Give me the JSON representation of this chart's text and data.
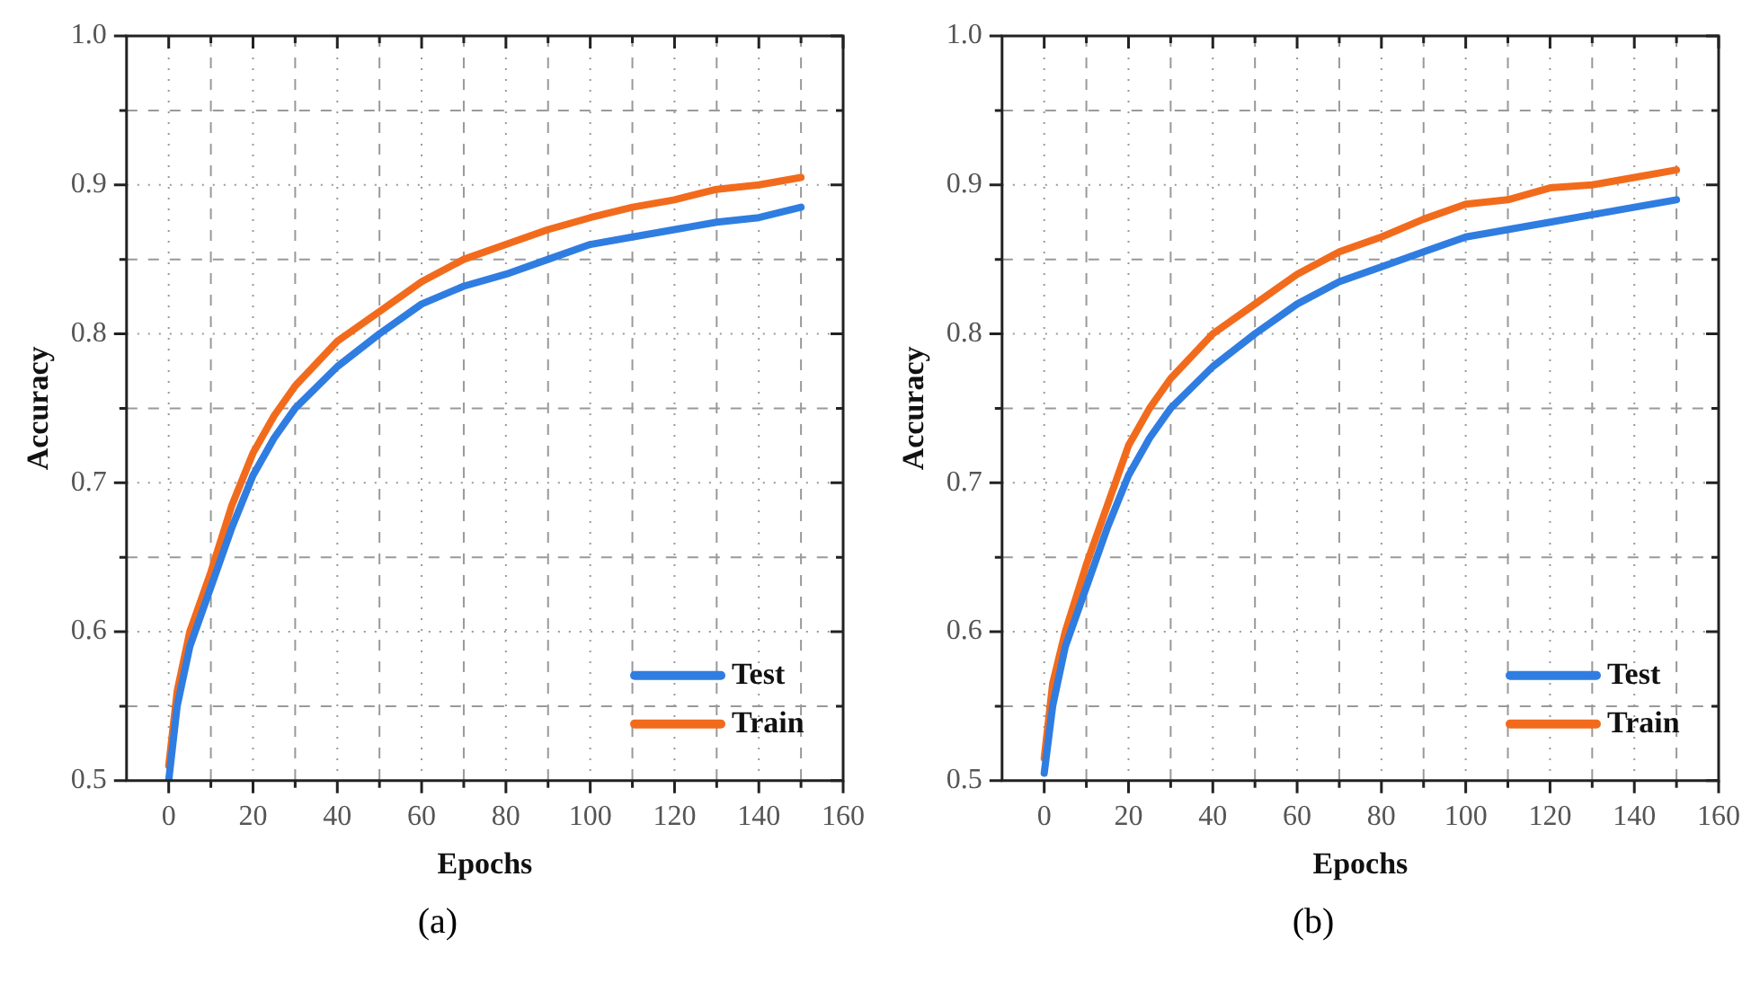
{
  "chart_data": [
    {
      "type": "line",
      "xlabel": "Epochs",
      "ylabel": "Accuracy",
      "annotations": [
        "(a)"
      ],
      "xlim": [
        -10,
        160
      ],
      "ylim": [
        0.5,
        1.0
      ],
      "xticks": [
        0,
        {
          "value": 10,
          "label": null
        },
        20,
        {
          "value": 30,
          "label": null
        },
        40,
        {
          "value": 50,
          "label": null
        },
        60,
        {
          "value": 70,
          "label": null
        },
        80,
        {
          "value": 90,
          "label": null
        },
        100,
        {
          "value": 110,
          "label": null
        },
        120,
        {
          "value": 130,
          "label": null
        },
        140,
        {
          "value": 150,
          "label": null
        },
        160
      ],
      "yticks": [
        0.5,
        {
          "value": 0.55,
          "label": null
        },
        0.6,
        {
          "value": 0.65,
          "label": null
        },
        0.7,
        {
          "value": 0.75,
          "label": null
        },
        0.8,
        {
          "value": 0.85,
          "label": null
        },
        0.9,
        {
          "value": 0.95,
          "label": null
        },
        {
          "value": 1.0,
          "label": "1.0"
        }
      ],
      "grid": true,
      "legend": "bottom right",
      "marker": "none",
      "line_style": "solid",
      "x": [
        0,
        2,
        5,
        10,
        15,
        20,
        25,
        30,
        40,
        50,
        60,
        70,
        80,
        90,
        100,
        110,
        120,
        130,
        140,
        150
      ],
      "series": [
        {
          "name": "Test",
          "color": "#2f7de1",
          "values": [
            0.5,
            0.55,
            0.59,
            0.63,
            0.67,
            0.705,
            0.73,
            0.75,
            0.778,
            0.8,
            0.82,
            0.832,
            0.84,
            0.85,
            0.86,
            0.865,
            0.87,
            0.875,
            0.878,
            0.885
          ]
        },
        {
          "name": "Train",
          "color": "#f26b1d",
          "values": [
            0.51,
            0.56,
            0.6,
            0.64,
            0.685,
            0.72,
            0.745,
            0.765,
            0.795,
            0.815,
            0.835,
            0.85,
            0.86,
            0.87,
            0.878,
            0.885,
            0.89,
            0.897,
            0.9,
            0.905
          ]
        }
      ]
    },
    {
      "type": "line",
      "xlabel": "Epochs",
      "ylabel": "Accuracy",
      "annotations": [
        "(b)"
      ],
      "xlim": [
        -10,
        160
      ],
      "ylim": [
        0.5,
        1.0
      ],
      "xticks": [
        0,
        {
          "value": 10,
          "label": null
        },
        20,
        {
          "value": 30,
          "label": null
        },
        40,
        {
          "value": 50,
          "label": null
        },
        60,
        {
          "value": 70,
          "label": null
        },
        80,
        {
          "value": 90,
          "label": null
        },
        100,
        {
          "value": 110,
          "label": null
        },
        120,
        {
          "value": 130,
          "label": null
        },
        140,
        {
          "value": 150,
          "label": null
        },
        160
      ],
      "yticks": [
        0.5,
        {
          "value": 0.55,
          "label": null
        },
        0.6,
        {
          "value": 0.65,
          "label": null
        },
        0.7,
        {
          "value": 0.75,
          "label": null
        },
        0.8,
        {
          "value": 0.85,
          "label": null
        },
        0.9,
        {
          "value": 0.95,
          "label": null
        },
        {
          "value": 1.0,
          "label": "1.0"
        }
      ],
      "grid": true,
      "legend": "bottom right",
      "marker": "none",
      "line_style": "solid",
      "x": [
        0,
        2,
        5,
        10,
        15,
        20,
        25,
        30,
        40,
        50,
        60,
        70,
        80,
        90,
        100,
        110,
        120,
        130,
        140,
        150
      ],
      "series": [
        {
          "name": "Test",
          "color": "#2f7de1",
          "values": [
            0.505,
            0.55,
            0.59,
            0.63,
            0.67,
            0.705,
            0.73,
            0.75,
            0.778,
            0.8,
            0.82,
            0.835,
            0.845,
            0.855,
            0.865,
            0.87,
            0.875,
            0.88,
            0.885,
            0.89
          ]
        },
        {
          "name": "Train",
          "color": "#f26b1d",
          "values": [
            0.515,
            0.565,
            0.6,
            0.645,
            0.685,
            0.725,
            0.75,
            0.77,
            0.8,
            0.82,
            0.84,
            0.855,
            0.865,
            0.877,
            0.887,
            0.89,
            0.898,
            0.9,
            0.905,
            0.91
          ]
        }
      ]
    }
  ]
}
